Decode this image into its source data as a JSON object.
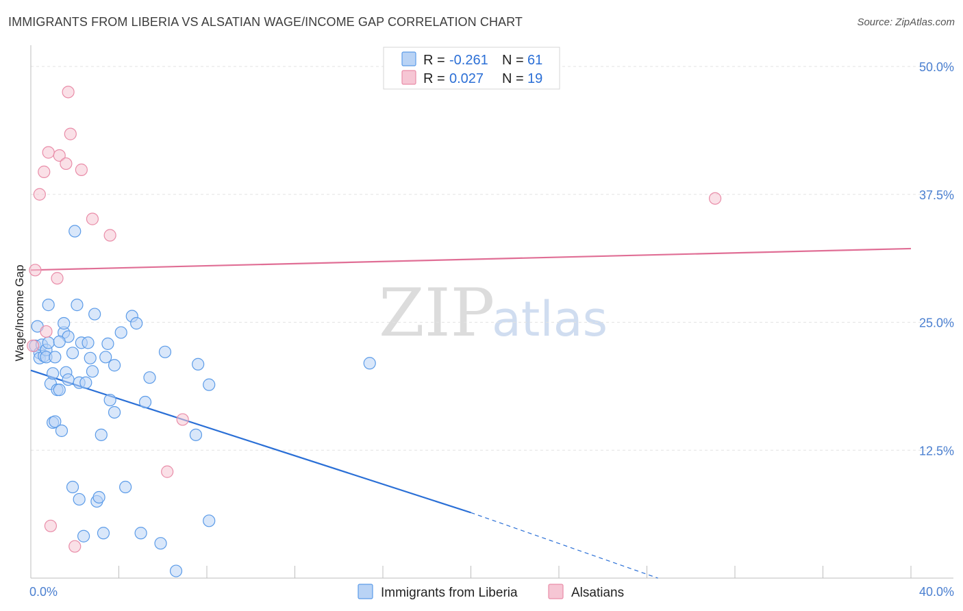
{
  "header": {
    "title": "IMMIGRANTS FROM LIBERIA VS ALSATIAN WAGE/INCOME GAP CORRELATION CHART",
    "source": "Source: ZipAtlas.com"
  },
  "watermark": {
    "zip": "ZIP",
    "atlas": "atlas"
  },
  "colors": {
    "blue": "#5b9be8",
    "blue_fill": "#b9d3f5",
    "blue_line": "#2a6fd6",
    "pink": "#e98ca8",
    "pink_fill": "#f6c6d4",
    "pink_line": "#e06e95",
    "tick_text": "#4a7fd0",
    "grid": "#e3e3e3"
  },
  "legend": {
    "rows": [
      {
        "r_label": "R = ",
        "r_value": "-0.261",
        "n_label": "N = ",
        "n_value": "61"
      },
      {
        "r_label": "R = ",
        "r_value": "0.027",
        "n_label": "N = ",
        "n_value": "19"
      }
    ]
  },
  "chart_data": {
    "type": "scatter",
    "title": "IMMIGRANTS FROM LIBERIA VS ALSATIAN WAGE/INCOME GAP CORRELATION CHART",
    "xlabel": "",
    "ylabel": "Wage/Income Gap",
    "xlim": [
      0,
      40
    ],
    "ylim": [
      0,
      50
    ],
    "x_tick_labels": [
      {
        "value": 0,
        "label": "0.0%"
      },
      {
        "value": 40,
        "label": "40.0%"
      }
    ],
    "y_tick_labels": [
      {
        "value": 12.5,
        "label": "12.5%"
      },
      {
        "value": 25,
        "label": "25.0%"
      },
      {
        "value": 37.5,
        "label": "37.5%"
      },
      {
        "value": 50,
        "label": "50.0%"
      }
    ],
    "x_minor_ticks": [
      4,
      8,
      12,
      16,
      20,
      24,
      28,
      32,
      36,
      40
    ],
    "grid": true,
    "legend_position": "bottom",
    "series": [
      {
        "name": "Immigrants from Liberia",
        "color": "blue",
        "R": -0.261,
        "N": 61,
        "trend": {
          "x0": 0,
          "y0": 20.3,
          "x1": 20,
          "y1": 6.4,
          "dash_to_x": 28.5,
          "dash_to_y": 0
        },
        "points": [
          [
            0.2,
            22.7
          ],
          [
            0.3,
            24.6
          ],
          [
            0.4,
            22.0
          ],
          [
            0.4,
            21.5
          ],
          [
            0.5,
            22.8
          ],
          [
            0.6,
            21.7
          ],
          [
            0.7,
            22.3
          ],
          [
            0.7,
            21.6
          ],
          [
            0.8,
            23.0
          ],
          [
            0.8,
            26.7
          ],
          [
            0.9,
            19.0
          ],
          [
            1.0,
            15.2
          ],
          [
            1.0,
            20.0
          ],
          [
            1.1,
            21.6
          ],
          [
            1.1,
            15.3
          ],
          [
            1.2,
            18.4
          ],
          [
            1.3,
            18.4
          ],
          [
            1.4,
            14.4
          ],
          [
            1.5,
            24.0
          ],
          [
            1.5,
            24.9
          ],
          [
            1.6,
            20.1
          ],
          [
            1.7,
            19.4
          ],
          [
            1.7,
            23.6
          ],
          [
            1.9,
            8.9
          ],
          [
            1.9,
            22.0
          ],
          [
            2.0,
            33.9
          ],
          [
            2.1,
            26.7
          ],
          [
            2.2,
            7.7
          ],
          [
            2.2,
            19.1
          ],
          [
            2.3,
            23.0
          ],
          [
            2.4,
            4.1
          ],
          [
            2.5,
            19.1
          ],
          [
            2.6,
            23.0
          ],
          [
            2.7,
            21.5
          ],
          [
            2.8,
            20.2
          ],
          [
            2.9,
            25.8
          ],
          [
            3.0,
            7.5
          ],
          [
            3.1,
            7.9
          ],
          [
            3.2,
            14.0
          ],
          [
            3.3,
            4.4
          ],
          [
            3.4,
            21.6
          ],
          [
            3.5,
            22.9
          ],
          [
            3.6,
            17.4
          ],
          [
            3.8,
            16.2
          ],
          [
            3.8,
            20.8
          ],
          [
            4.1,
            24.0
          ],
          [
            4.3,
            8.9
          ],
          [
            4.6,
            25.6
          ],
          [
            4.8,
            24.9
          ],
          [
            5.0,
            4.4
          ],
          [
            5.2,
            17.2
          ],
          [
            5.4,
            19.6
          ],
          [
            5.9,
            3.4
          ],
          [
            6.1,
            22.1
          ],
          [
            6.6,
            0.7
          ],
          [
            7.5,
            14.0
          ],
          [
            7.6,
            20.9
          ],
          [
            8.1,
            18.9
          ],
          [
            8.1,
            5.6
          ],
          [
            15.4,
            21.0
          ],
          [
            1.3,
            23.1
          ]
        ]
      },
      {
        "name": "Alsatians",
        "color": "pink",
        "R": 0.027,
        "N": 19,
        "trend": {
          "x0": 0,
          "y0": 30.1,
          "x1": 40,
          "y1": 32.2
        },
        "points": [
          [
            0.1,
            22.7
          ],
          [
            0.2,
            30.1
          ],
          [
            0.4,
            37.5
          ],
          [
            0.6,
            39.7
          ],
          [
            0.7,
            24.1
          ],
          [
            0.8,
            41.6
          ],
          [
            0.9,
            5.1
          ],
          [
            1.2,
            29.3
          ],
          [
            1.3,
            41.3
          ],
          [
            1.6,
            40.5
          ],
          [
            1.7,
            47.5
          ],
          [
            1.8,
            43.4
          ],
          [
            2.0,
            3.1
          ],
          [
            2.3,
            39.9
          ],
          [
            2.8,
            35.1
          ],
          [
            3.6,
            33.5
          ],
          [
            6.2,
            10.4
          ],
          [
            6.9,
            15.5
          ],
          [
            31.1,
            37.1
          ]
        ]
      }
    ]
  }
}
